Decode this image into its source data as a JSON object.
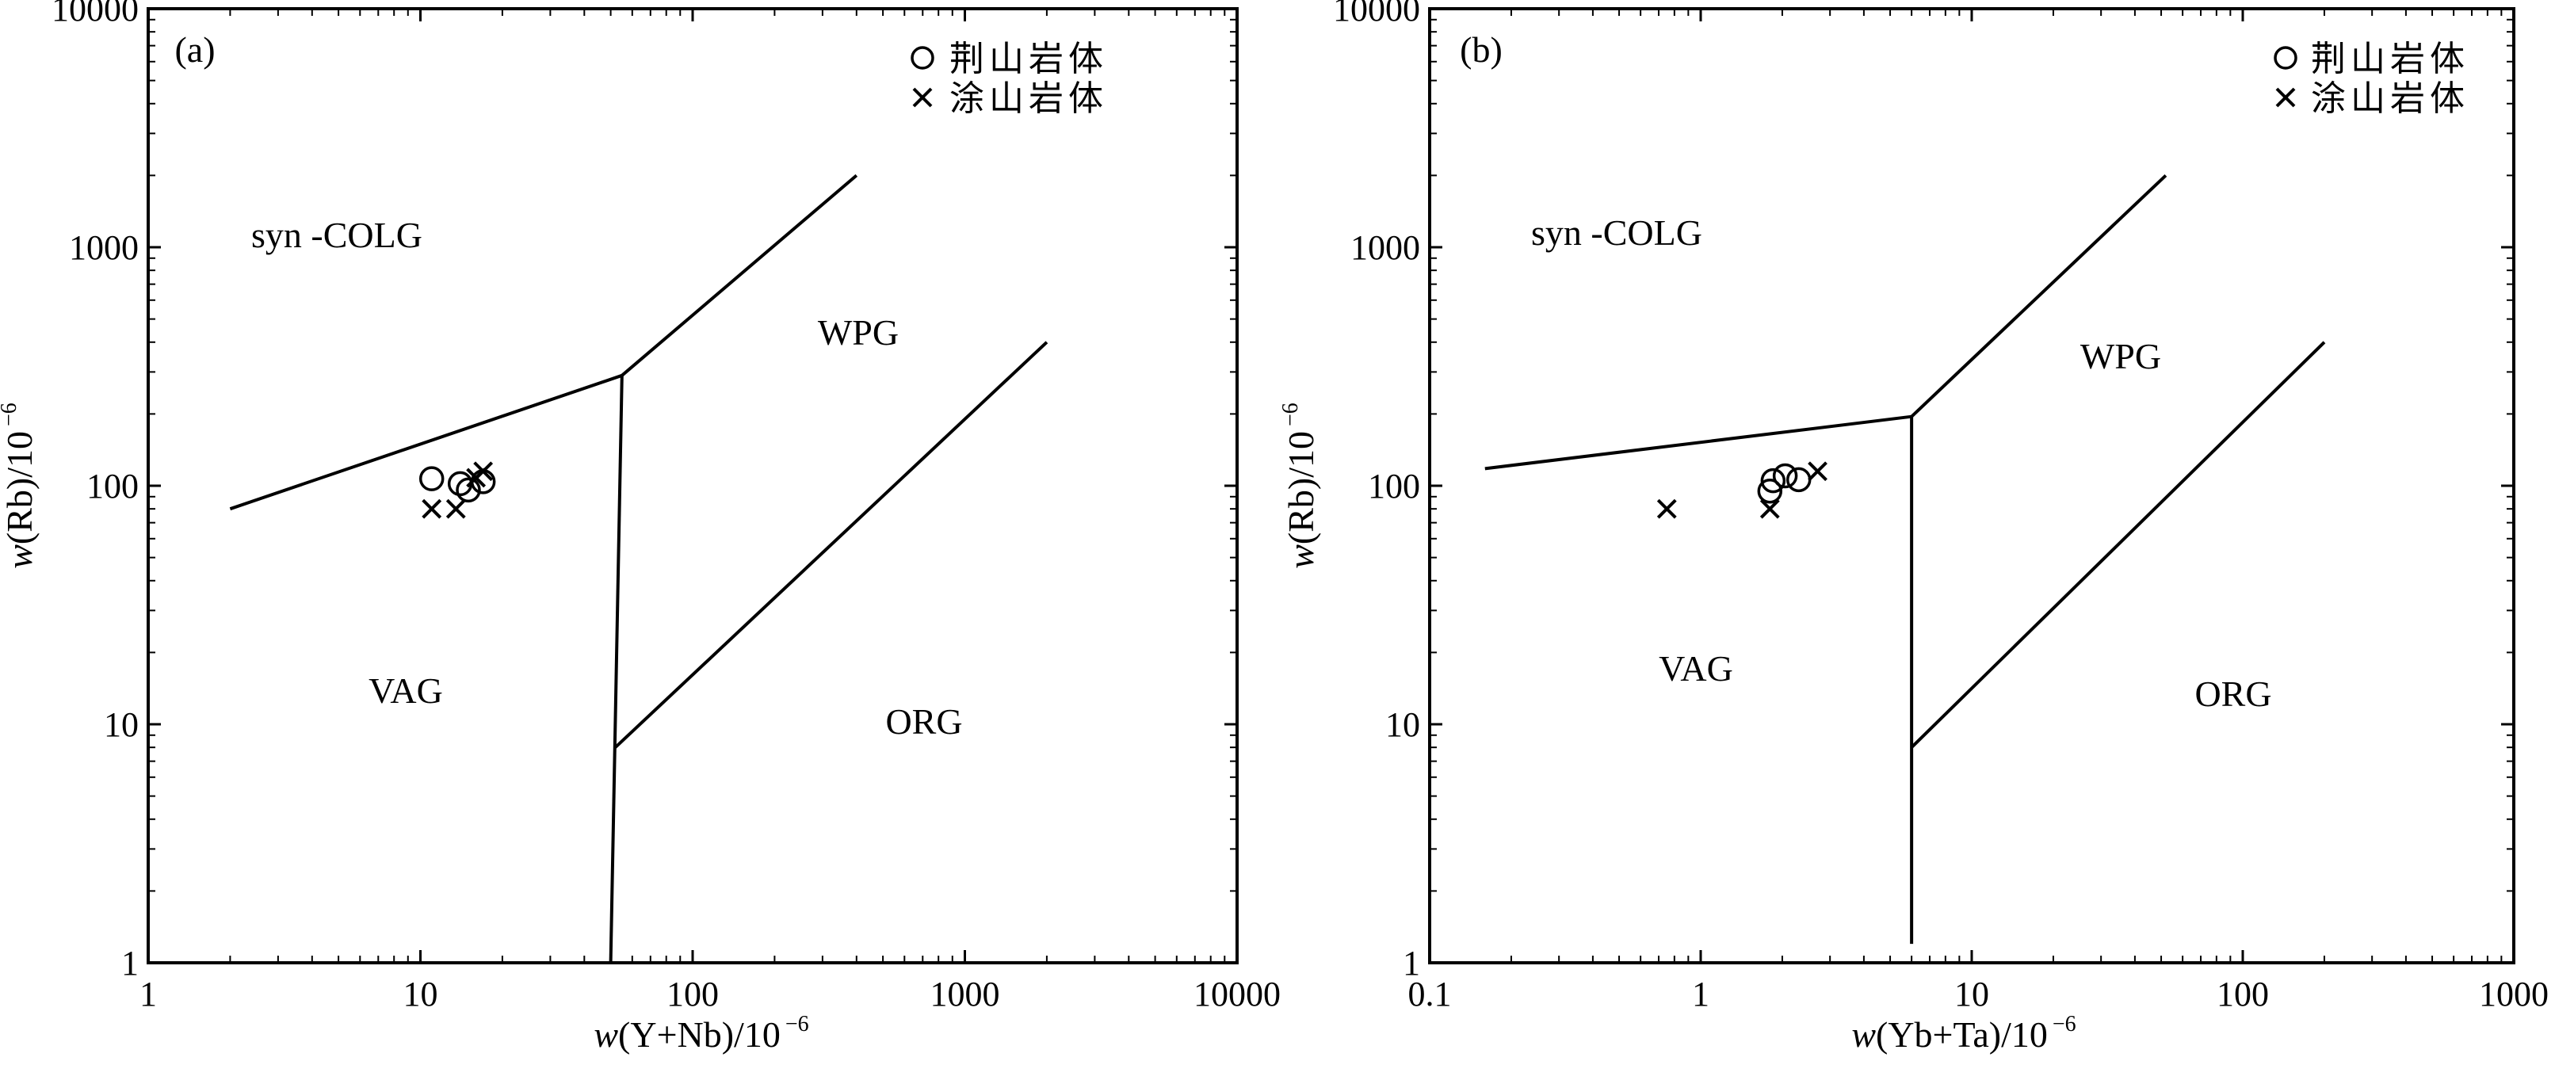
{
  "chart_data": [
    {
      "type": "scatter",
      "panel_label": "(a)",
      "xscale": "log",
      "yscale": "log",
      "xlim": [
        1,
        10000
      ],
      "ylim": [
        1,
        10000
      ],
      "xlabel": "w(Y+Nb)/10",
      "ylabel": "w(Rb)/10",
      "label_exponent": "−6",
      "xticks": [
        "1",
        "10",
        "100",
        "1000",
        "10000"
      ],
      "yticks": [
        "1",
        "10",
        "100",
        "1000",
        "10000"
      ],
      "fields": [
        "syn -COLG",
        "WPG",
        "VAG",
        "ORG"
      ],
      "boundaries": [
        {
          "x": [
            2,
            55
          ],
          "y": [
            80,
            290
          ]
        },
        {
          "x": [
            55,
            400
          ],
          "y": [
            290,
            2000
          ]
        },
        {
          "x": [
            55,
            50
          ],
          "y": [
            290,
            1
          ]
        },
        {
          "x": [
            52,
            2000
          ],
          "y": [
            8,
            400
          ]
        }
      ],
      "series": [
        {
          "name": "荆山岩体",
          "marker": "circle",
          "x": [
            11,
            14,
            15,
            17
          ],
          "y": [
            107,
            102,
            96,
            104
          ]
        },
        {
          "name": "涂山岩体",
          "marker": "x",
          "x": [
            11,
            13.5,
            16,
            17
          ],
          "y": [
            80,
            80,
            108,
            115
          ]
        }
      ],
      "legend_position": "top-right"
    },
    {
      "type": "scatter",
      "panel_label": "(b)",
      "xscale": "log",
      "yscale": "log",
      "xlim": [
        0.1,
        1000
      ],
      "ylim": [
        1,
        10000
      ],
      "xlabel": "w(Yb+Ta)/10",
      "ylabel": "w(Rb)/10",
      "label_exponent": "−6",
      "xticks": [
        "0.1",
        "1",
        "10",
        "100",
        "1000"
      ],
      "yticks": [
        "1",
        "10",
        "100",
        "1000",
        "10000"
      ],
      "fields": [
        "syn -COLG",
        "WPG",
        "VAG",
        "ORG"
      ],
      "boundaries": [
        {
          "x": [
            0.16,
            6
          ],
          "y": [
            118,
            195
          ]
        },
        {
          "x": [
            6,
            52
          ],
          "y": [
            195,
            2000
          ]
        },
        {
          "x": [
            6,
            6
          ],
          "y": [
            195,
            1.2
          ]
        },
        {
          "x": [
            6,
            200
          ],
          "y": [
            8,
            400
          ]
        }
      ],
      "series": [
        {
          "name": "荆山岩体",
          "marker": "circle",
          "x": [
            1.8,
            1.85,
            2.05,
            2.3
          ],
          "y": [
            95,
            105,
            110,
            106
          ]
        },
        {
          "name": "涂山岩体",
          "marker": "x",
          "x": [
            0.75,
            1.8,
            2.7
          ],
          "y": [
            80,
            80,
            115
          ]
        }
      ],
      "legend_position": "top-right"
    }
  ]
}
